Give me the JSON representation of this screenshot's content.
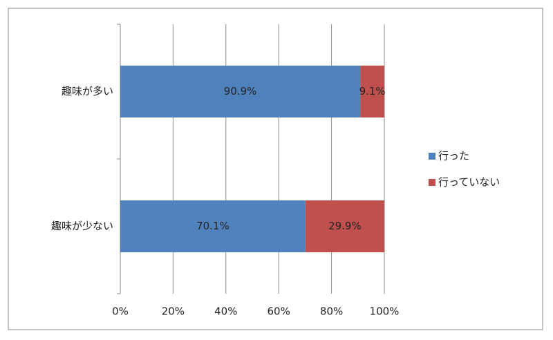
{
  "chart_data": {
    "type": "stacked-bar-horizontal",
    "categories": [
      "趣味が多い",
      "趣味が少ない"
    ],
    "series": [
      {
        "name": "行った",
        "color": "#4f81bd",
        "values": [
          90.9,
          70.1
        ],
        "value_labels": [
          "90.9%",
          "70.1%"
        ]
      },
      {
        "name": "行っていない",
        "color": "#c0504d",
        "values": [
          9.1,
          29.9
        ],
        "value_labels": [
          "9.1%",
          "29.9%"
        ]
      }
    ],
    "xlim": [
      0,
      100
    ],
    "xticks": [
      {
        "value": 0,
        "label": "0%"
      },
      {
        "value": 20,
        "label": "20%"
      },
      {
        "value": 40,
        "label": "40%"
      },
      {
        "value": 60,
        "label": "60%"
      },
      {
        "value": 80,
        "label": "80%"
      },
      {
        "value": 100,
        "label": "100%"
      }
    ],
    "grid": true,
    "legend": "right"
  }
}
